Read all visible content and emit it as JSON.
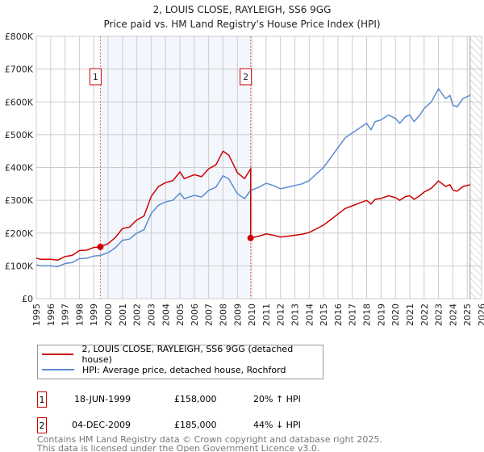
{
  "chart_data": {
    "type": "line",
    "title": "2, LOUIS CLOSE, RAYLEIGH, SS6 9GG",
    "subtitle": "Price paid vs. HM Land Registry's House Price Index (HPI)",
    "xlim": [
      1995,
      2026
    ],
    "ylim": [
      0,
      800000
    ],
    "x_ticks": [
      "1995",
      "1996",
      "1997",
      "1998",
      "1999",
      "2000",
      "2001",
      "2002",
      "2003",
      "2004",
      "2005",
      "2006",
      "2007",
      "2008",
      "2009",
      "2010",
      "2011",
      "2012",
      "2013",
      "2014",
      "2015",
      "2016",
      "2017",
      "2018",
      "2019",
      "2020",
      "2021",
      "2022",
      "2023",
      "2024",
      "2025",
      "2026"
    ],
    "y_ticks": [
      {
        "v": 0,
        "label": "£0"
      },
      {
        "v": 100000,
        "label": "£100K"
      },
      {
        "v": 200000,
        "label": "£200K"
      },
      {
        "v": 300000,
        "label": "£300K"
      },
      {
        "v": 400000,
        "label": "£400K"
      },
      {
        "v": 500000,
        "label": "£500K"
      },
      {
        "v": 600000,
        "label": "£600K"
      },
      {
        "v": 700000,
        "label": "£700K"
      },
      {
        "v": 800000,
        "label": "£800K"
      }
    ],
    "grid": true,
    "shaded_range": [
      1999.46,
      2009.92
    ],
    "forecast_hatch_from": 2025.2,
    "series": [
      {
        "name": "2, LOUIS CLOSE, RAYLEIGH, SS6 9GG (detached house)",
        "color": "#cc0000",
        "x": [
          1995,
          1995.3,
          1996,
          1996.5,
          1997,
          1997.5,
          1998,
          1998.5,
          1999,
          1999.46,
          2000,
          2000.5,
          2001,
          2001.5,
          2002,
          2002.5,
          2003,
          2003.5,
          2004,
          2004.5,
          2005,
          2005.3,
          2006,
          2006.5,
          2007,
          2007.5,
          2008,
          2008.4,
          2009,
          2009.5,
          2009.92,
          2009.92,
          2010.5,
          2011,
          2011.5,
          2012,
          2012.5,
          2013,
          2013.5,
          2014,
          2014.5,
          2015,
          2015.5,
          2016,
          2016.5,
          2017,
          2017.5,
          2018,
          2018.3,
          2018.6,
          2019,
          2019.5,
          2020,
          2020.3,
          2020.7,
          2021,
          2021.3,
          2021.7,
          2022,
          2022.5,
          2023,
          2023.5,
          2023.8,
          2024,
          2024.3,
          2024.7,
          2025.2
        ],
        "values": [
          123600,
          120000,
          120000,
          117600,
          128400,
          132000,
          146400,
          147600,
          156000,
          158000,
          168000,
          186000,
          213600,
          218400,
          240000,
          252000,
          312000,
          342000,
          354000,
          360000,
          386400,
          366000,
          378000,
          372000,
          396000,
          408000,
          450000,
          438000,
          384000,
          366000,
          396000,
          185000,
          190600,
          197300,
          193400,
          187800,
          190600,
          193400,
          196200,
          201800,
          213000,
          224200,
          241000,
          257900,
          274700,
          283100,
          291500,
          299900,
          288700,
          302700,
          305500,
          313900,
          308300,
          299900,
          311100,
          313900,
          302700,
          313900,
          325100,
          336400,
          358800,
          342000,
          347600,
          330800,
          328000,
          342000,
          347600
        ]
      },
      {
        "name": "HPI: Average price, detached house, Rochford",
        "color": "#5b8bd0",
        "x": [
          1995,
          1995.3,
          1996,
          1996.5,
          1997,
          1997.5,
          1998,
          1998.5,
          1999,
          1999.46,
          2000,
          2000.5,
          2001,
          2001.5,
          2002,
          2002.5,
          2003,
          2003.5,
          2004,
          2004.5,
          2005,
          2005.3,
          2006,
          2006.5,
          2007,
          2007.5,
          2008,
          2008.4,
          2009,
          2009.5,
          2009.92,
          2010.5,
          2011,
          2011.5,
          2012,
          2012.5,
          2013,
          2013.5,
          2014,
          2014.5,
          2015,
          2015.5,
          2016,
          2016.5,
          2017,
          2017.5,
          2018,
          2018.3,
          2018.6,
          2019,
          2019.5,
          2020,
          2020.3,
          2020.7,
          2021,
          2021.3,
          2021.7,
          2022,
          2022.5,
          2023,
          2023.5,
          2023.8,
          2024,
          2024.3,
          2024.7,
          2025.2
        ],
        "values": [
          103000,
          100000,
          100000,
          98000,
          107000,
          110000,
          122000,
          123000,
          130000,
          131700,
          140000,
          155000,
          178000,
          182000,
          200000,
          210000,
          260000,
          285000,
          295000,
          300000,
          322000,
          305000,
          315000,
          310000,
          330000,
          340000,
          375000,
          365000,
          320000,
          305000,
          330000,
          340000,
          352000,
          345000,
          335000,
          340000,
          345000,
          350000,
          360000,
          380000,
          400000,
          430000,
          460000,
          490000,
          505000,
          520000,
          535000,
          515000,
          540000,
          545000,
          560000,
          550000,
          535000,
          555000,
          560000,
          540000,
          560000,
          580000,
          600000,
          640000,
          610000,
          620000,
          590000,
          585000,
          610000,
          620000
        ]
      }
    ],
    "sales": [
      {
        "label": "1",
        "x": 1999.46,
        "value": 158000
      },
      {
        "label": "2",
        "x": 2009.92,
        "value": 185000
      }
    ]
  },
  "legend": [
    {
      "label": "2, LOUIS CLOSE, RAYLEIGH, SS6 9GG (detached house)",
      "color": "#cc0000"
    },
    {
      "label": "HPI: Average price, detached house, Rochford",
      "color": "#5b8bd0"
    }
  ],
  "transactions": [
    {
      "num": "1",
      "date": "18-JUN-1999",
      "price": "£158,000",
      "hpi": "20% ↑ HPI"
    },
    {
      "num": "2",
      "date": "04-DEC-2009",
      "price": "£185,000",
      "hpi": "44% ↓ HPI"
    }
  ],
  "footer": [
    "Contains HM Land Registry data © Crown copyright and database right 2025.",
    "This data is licensed under the Open Government Licence v3.0."
  ]
}
